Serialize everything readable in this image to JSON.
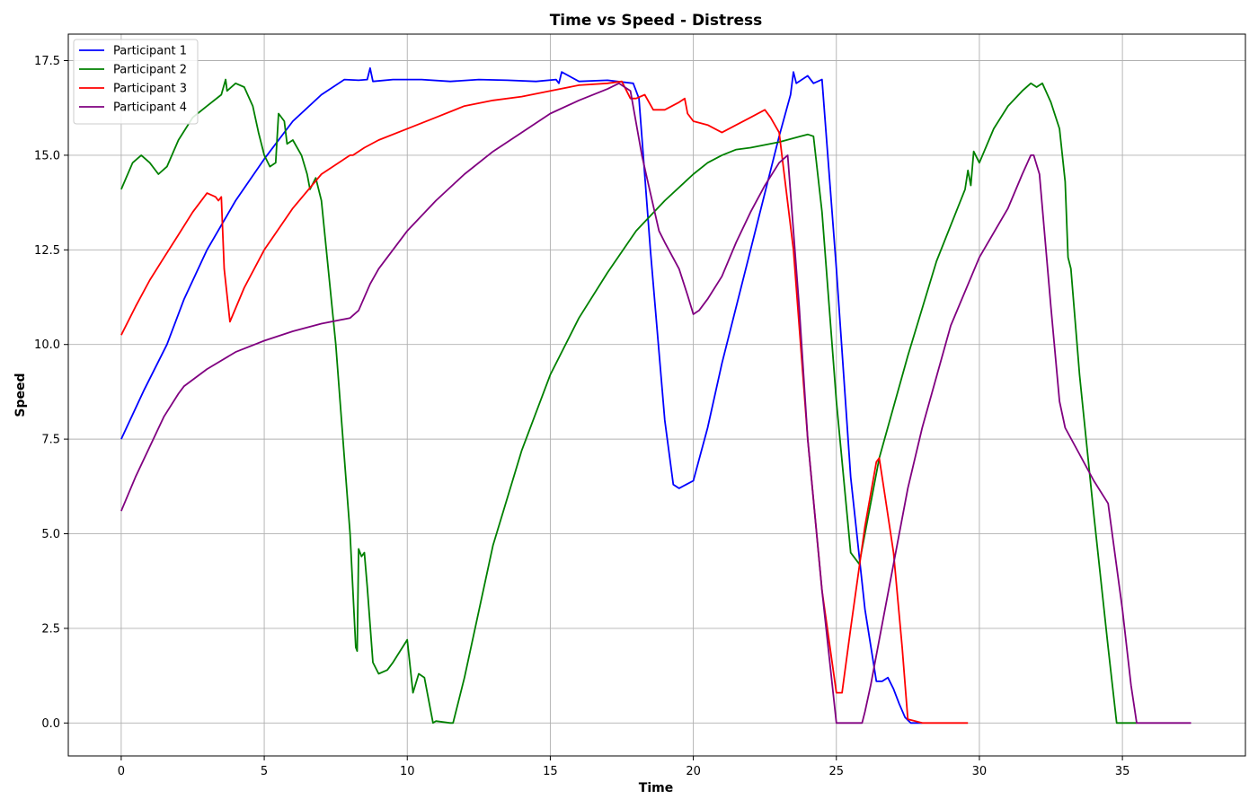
{
  "chart_data": {
    "type": "line",
    "title": "Time vs Speed - Distress",
    "xlabel": "Time",
    "ylabel": "Speed",
    "xlim": [
      -1.85,
      39.3
    ],
    "ylim": [
      -0.87,
      18.2
    ],
    "xticks": [
      0,
      5,
      10,
      15,
      20,
      25,
      30,
      35
    ],
    "xtick_labels": [
      "0",
      "5",
      "10",
      "15",
      "20",
      "25",
      "30",
      "35"
    ],
    "yticks": [
      0.0,
      2.5,
      5.0,
      7.5,
      10.0,
      12.5,
      15.0,
      17.5
    ],
    "ytick_labels": [
      "0.0",
      "2.5",
      "5.0",
      "7.5",
      "10.0",
      "12.5",
      "15.0",
      "17.5"
    ],
    "grid": true,
    "legend_position": "top-left",
    "series": [
      {
        "name": "Participant 1",
        "color": "#0000ff",
        "x": [
          0,
          0.8,
          1.6,
          2.2,
          3,
          4,
          5,
          6,
          7,
          7.8,
          8.3,
          8.6,
          8.7,
          8.8,
          9.5,
          10.5,
          11.5,
          12.5,
          13.5,
          14.5,
          15.2,
          15.3,
          15.4,
          16,
          17,
          17.9,
          18.1,
          18.5,
          19,
          19.3,
          19.5,
          20,
          20.5,
          21,
          22,
          23,
          23.4,
          23.5,
          23.6,
          24,
          24.2,
          24.5,
          25,
          25.5,
          26,
          26.4,
          26.6,
          26.8,
          27,
          27.2,
          27.4,
          27.6,
          28
        ],
        "y": [
          7.5,
          8.8,
          10.0,
          11.2,
          12.5,
          13.8,
          14.9,
          15.9,
          16.6,
          17.0,
          16.98,
          17.0,
          17.3,
          16.95,
          17.0,
          17.0,
          16.95,
          17.0,
          16.98,
          16.95,
          17.0,
          16.9,
          17.2,
          16.95,
          16.98,
          16.9,
          16.5,
          12.5,
          8.0,
          6.3,
          6.2,
          6.4,
          7.8,
          9.5,
          12.5,
          15.5,
          16.6,
          17.2,
          16.9,
          17.1,
          16.9,
          17.0,
          12.0,
          6.5,
          3.0,
          1.1,
          1.1,
          1.2,
          0.9,
          0.5,
          0.15,
          0.0,
          0.0
        ]
      },
      {
        "name": "Participant 2",
        "color": "#008000",
        "x": [
          0,
          0.4,
          0.7,
          1.0,
          1.3,
          1.6,
          2.0,
          2.5,
          3.0,
          3.5,
          3.65,
          3.7,
          4.0,
          4.3,
          4.6,
          4.8,
          5.0,
          5.2,
          5.4,
          5.5,
          5.7,
          5.8,
          6.0,
          6.3,
          6.5,
          6.6,
          6.8,
          7.0,
          7.5,
          8.0,
          8.2,
          8.25,
          8.3,
          8.4,
          8.5,
          8.6,
          8.8,
          9.0,
          9.3,
          9.5,
          10.0,
          10.2,
          10.4,
          10.6,
          10.9,
          11.0,
          11.5,
          11.6,
          12.0,
          13.0,
          14.0,
          15.0,
          16.0,
          17.0,
          18.0,
          19.0,
          20.0,
          20.5,
          21.0,
          21.5,
          22.0,
          23.0,
          24.0,
          24.2,
          24.5,
          25.0,
          25.5,
          25.8,
          26.5,
          27.5,
          28.5,
          29.5,
          29.6,
          29.7,
          29.8,
          30.0,
          30.5,
          31.0,
          31.5,
          31.8,
          32.0,
          32.2,
          32.5,
          32.8,
          33.0,
          33.1,
          33.2,
          33.5,
          34.0,
          34.5,
          34.8,
          35.0,
          35.5
        ],
        "y": [
          14.1,
          14.8,
          15.0,
          14.8,
          14.5,
          14.7,
          15.4,
          16.0,
          16.3,
          16.6,
          17.0,
          16.7,
          16.9,
          16.8,
          16.3,
          15.6,
          15.0,
          14.7,
          14.8,
          16.1,
          15.9,
          15.3,
          15.4,
          15.0,
          14.5,
          14.1,
          14.4,
          13.8,
          10.0,
          5.0,
          2.0,
          1.9,
          4.6,
          4.4,
          4.5,
          3.6,
          1.6,
          1.3,
          1.4,
          1.6,
          2.2,
          0.8,
          1.3,
          1.2,
          0.0,
          0.05,
          0.0,
          0.0,
          1.2,
          4.7,
          7.2,
          9.2,
          10.7,
          11.9,
          13.0,
          13.8,
          14.5,
          14.8,
          15.0,
          15.15,
          15.2,
          15.35,
          15.55,
          15.5,
          13.5,
          8.5,
          4.5,
          4.2,
          7.0,
          9.7,
          12.2,
          14.1,
          14.6,
          14.2,
          15.1,
          14.8,
          15.7,
          16.3,
          16.7,
          16.9,
          16.8,
          16.9,
          16.4,
          15.7,
          14.3,
          12.3,
          12.0,
          9.2,
          5.5,
          2.0,
          0.0,
          0.0,
          0.0
        ]
      },
      {
        "name": "Participant 3",
        "color": "#ff0000",
        "x": [
          0,
          0.5,
          1.0,
          1.5,
          2.0,
          2.5,
          3.0,
          3.3,
          3.4,
          3.5,
          3.6,
          3.8,
          4.3,
          5.0,
          6.0,
          7.0,
          8.0,
          8.1,
          8.5,
          9.0,
          10.0,
          11.0,
          12.0,
          13.0,
          14.0,
          15.0,
          16.0,
          17.0,
          17.5,
          17.8,
          18.0,
          18.3,
          18.6,
          18.8,
          19.0,
          19.5,
          19.7,
          19.8,
          20.0,
          20.5,
          21.0,
          21.5,
          22.0,
          22.5,
          22.7,
          23.0,
          23.5,
          24.0,
          24.5,
          25.0,
          25.2,
          25.5,
          26.0,
          26.4,
          26.5,
          26.7,
          27.0,
          27.3,
          27.5,
          28.0,
          29.6
        ],
        "y": [
          10.25,
          11.0,
          11.7,
          12.3,
          12.9,
          13.5,
          14.0,
          13.9,
          13.8,
          13.9,
          12.0,
          10.6,
          11.5,
          12.5,
          13.6,
          14.5,
          15.0,
          15.0,
          15.2,
          15.4,
          15.7,
          16.0,
          16.3,
          16.45,
          16.55,
          16.7,
          16.85,
          16.9,
          16.95,
          16.5,
          16.5,
          16.6,
          16.2,
          16.2,
          16.2,
          16.4,
          16.5,
          16.1,
          15.9,
          15.8,
          15.6,
          15.8,
          16.0,
          16.2,
          16.0,
          15.6,
          12.5,
          7.5,
          3.5,
          0.8,
          0.8,
          2.5,
          5.2,
          6.9,
          7.0,
          6.0,
          4.5,
          2.0,
          0.1,
          0.0,
          0.0
        ]
      },
      {
        "name": "Participant 4",
        "color": "#800080",
        "x": [
          0,
          0.5,
          1.0,
          1.5,
          2.0,
          2.2,
          3.0,
          4.0,
          5.0,
          6.0,
          7.0,
          8.0,
          8.3,
          8.7,
          9.0,
          10.0,
          11.0,
          12.0,
          13.0,
          14.0,
          15.0,
          16.0,
          17.0,
          17.4,
          17.8,
          18.2,
          18.5,
          18.8,
          19.0,
          19.5,
          19.8,
          20.0,
          20.2,
          20.5,
          21.0,
          21.5,
          22.0,
          22.5,
          23.0,
          23.3,
          23.4,
          23.7,
          24.0,
          24.5,
          25.0,
          25.2,
          25.5,
          25.9,
          26.0,
          26.2,
          26.5,
          27.0,
          27.5,
          28.0,
          29.0,
          30.0,
          31.0,
          31.5,
          31.8,
          31.9,
          32.1,
          32.5,
          32.8,
          33.0,
          33.5,
          34.0,
          34.5,
          35.0,
          35.3,
          35.5,
          37.4
        ],
        "y": [
          5.6,
          6.5,
          7.3,
          8.1,
          8.7,
          8.9,
          9.35,
          9.8,
          10.1,
          10.35,
          10.55,
          10.7,
          10.9,
          11.6,
          12.0,
          13.0,
          13.8,
          14.5,
          15.1,
          15.6,
          16.1,
          16.45,
          16.75,
          16.9,
          16.7,
          15.0,
          14.0,
          13.0,
          12.7,
          12.0,
          11.3,
          10.8,
          10.9,
          11.2,
          11.8,
          12.7,
          13.5,
          14.2,
          14.8,
          15.0,
          14.0,
          11.0,
          7.5,
          3.5,
          0.0,
          0.0,
          0.0,
          0.0,
          0.3,
          1.0,
          2.2,
          4.2,
          6.2,
          7.8,
          10.5,
          12.3,
          13.6,
          14.5,
          15.0,
          15.0,
          14.5,
          11.0,
          8.5,
          7.8,
          7.1,
          6.4,
          5.8,
          3.0,
          1.0,
          0.0,
          0.0
        ]
      }
    ]
  }
}
